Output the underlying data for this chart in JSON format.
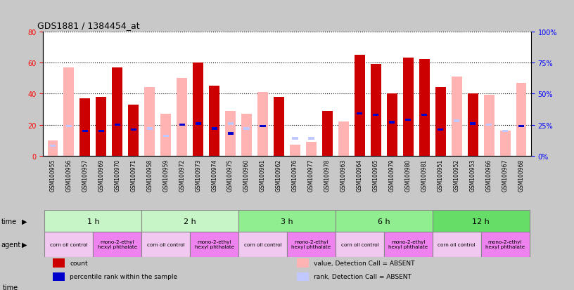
{
  "title": "GDS1881 / 1384454_at",
  "samples": [
    "GSM100955",
    "GSM100956",
    "GSM100957",
    "GSM100969",
    "GSM100970",
    "GSM100971",
    "GSM100958",
    "GSM100959",
    "GSM100972",
    "GSM100973",
    "GSM100974",
    "GSM100975",
    "GSM100960",
    "GSM100961",
    "GSM100962",
    "GSM100976",
    "GSM100977",
    "GSM100978",
    "GSM100963",
    "GSM100964",
    "GSM100965",
    "GSM100979",
    "GSM100980",
    "GSM100981",
    "GSM100951",
    "GSM100952",
    "GSM100953",
    "GSM100966",
    "GSM100967",
    "GSM100968"
  ],
  "count": [
    0,
    0,
    37,
    38,
    57,
    33,
    0,
    0,
    0,
    60,
    45,
    0,
    0,
    0,
    38,
    0,
    0,
    29,
    0,
    65,
    59,
    40,
    63,
    62,
    44,
    0,
    40,
    0,
    0,
    0
  ],
  "value_absent": [
    10,
    57,
    0,
    0,
    0,
    0,
    44,
    27,
    50,
    0,
    0,
    29,
    27,
    41,
    0,
    7,
    9,
    0,
    22,
    0,
    0,
    0,
    0,
    0,
    0,
    51,
    0,
    39,
    16,
    47
  ],
  "rank": [
    0,
    0,
    20,
    20,
    25,
    21,
    0,
    0,
    25,
    26,
    22,
    18,
    0,
    24,
    0,
    0,
    0,
    0,
    0,
    34,
    33,
    27,
    29,
    33,
    21,
    0,
    26,
    0,
    0,
    24
  ],
  "rank_absent": [
    8,
    24,
    0,
    0,
    0,
    0,
    22,
    16,
    0,
    0,
    0,
    26,
    22,
    0,
    0,
    14,
    14,
    0,
    0,
    0,
    0,
    0,
    0,
    0,
    0,
    28,
    0,
    25,
    20,
    0
  ],
  "time_groups": [
    {
      "label": "1 h",
      "start": 0,
      "end": 6,
      "color": "#c8f5c8"
    },
    {
      "label": "2 h",
      "start": 6,
      "end": 12,
      "color": "#c8f5c8"
    },
    {
      "label": "3 h",
      "start": 12,
      "end": 18,
      "color": "#90ee90"
    },
    {
      "label": "6 h",
      "start": 18,
      "end": 24,
      "color": "#90ee90"
    },
    {
      "label": "12 h",
      "start": 24,
      "end": 30,
      "color": "#66dd66"
    }
  ],
  "agent_groups": [
    {
      "label": "corn oil control",
      "start": 0,
      "end": 3,
      "color": "#f0c8f0"
    },
    {
      "label": "mono-2-ethyl\nhexyl phthalate",
      "start": 3,
      "end": 6,
      "color": "#ee82ee"
    },
    {
      "label": "corn oil control",
      "start": 6,
      "end": 9,
      "color": "#f0c8f0"
    },
    {
      "label": "mono-2-ethyl\nhexyl phthalate",
      "start": 9,
      "end": 12,
      "color": "#ee82ee"
    },
    {
      "label": "corn oil control",
      "start": 12,
      "end": 15,
      "color": "#f0c8f0"
    },
    {
      "label": "mono-2-ethyl\nhexyl phthalate",
      "start": 15,
      "end": 18,
      "color": "#ee82ee"
    },
    {
      "label": "corn oil control",
      "start": 18,
      "end": 21,
      "color": "#f0c8f0"
    },
    {
      "label": "mono-2-ethyl\nhexyl phthalate",
      "start": 21,
      "end": 24,
      "color": "#ee82ee"
    },
    {
      "label": "corn oil control",
      "start": 24,
      "end": 27,
      "color": "#f0c8f0"
    },
    {
      "label": "mono-2-ethyl\nhexyl phthalate",
      "start": 27,
      "end": 30,
      "color": "#ee82ee"
    }
  ],
  "ylim_left": [
    0,
    80
  ],
  "ylim_right": [
    0,
    100
  ],
  "yticks_left": [
    0,
    20,
    40,
    60,
    80
  ],
  "yticks_right": [
    0,
    25,
    50,
    75,
    100
  ],
  "color_count": "#cc0000",
  "color_rank": "#0000cc",
  "color_value_absent": "#ffb3b3",
  "color_rank_absent": "#c0c8ff",
  "bar_width": 0.65,
  "fig_bg": "#c8c8c8",
  "plot_bg": "#ffffff",
  "ticklabel_bg": "#c8c8c8",
  "time_border_color": "#888888",
  "agent_border_color": "#888888"
}
